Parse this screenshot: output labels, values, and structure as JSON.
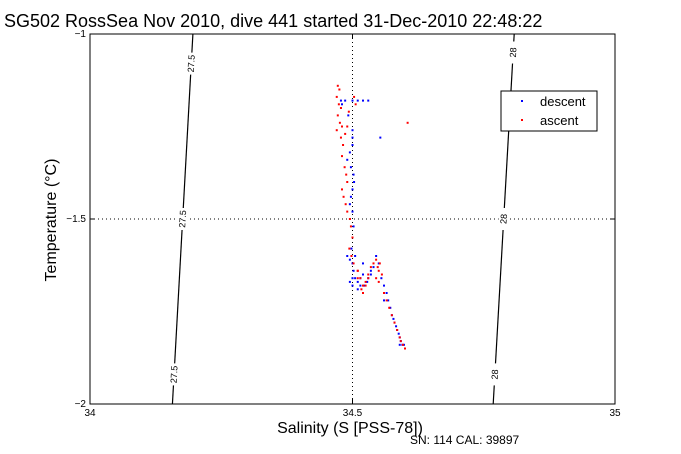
{
  "chart_data": {
    "type": "scatter",
    "title": "SG502 RossSea Nov 2010, dive 441 started 31-Dec-2010 22:48:22",
    "xlabel": "Salinity (S [PSS-78])",
    "ylabel": "Temperature (°C)",
    "xlim": [
      34,
      35
    ],
    "ylim": [
      -2,
      -1
    ],
    "xticks": [
      34,
      34.5,
      35
    ],
    "yticks": [
      -2,
      -1.5,
      -1
    ],
    "xtick_labels": [
      "34",
      "34.5",
      "35"
    ],
    "ytick_labels": [
      "−2",
      "−1.5",
      "−1"
    ],
    "grid": true,
    "legend_position": "top-right",
    "footer": "SN: 114  CAL: 39897",
    "isopycnals": [
      {
        "label": "27.5",
        "points": [
          [
            34.196,
            -1.0
          ],
          [
            34.157,
            -2.0
          ]
        ],
        "label_at": [
          -1.08,
          -1.5,
          -1.92
        ]
      },
      {
        "label": "28",
        "points": [
          [
            34.808,
            -1.0
          ],
          [
            34.768,
            -2.0
          ]
        ],
        "label_at": [
          -1.05,
          -1.5,
          -1.92
        ]
      }
    ],
    "series": [
      {
        "name": "descent",
        "color": "#0000ff",
        "x": [
          34.478,
          34.48,
          34.486,
          34.492,
          34.5,
          34.51,
          34.52,
          34.53,
          34.5,
          34.5,
          34.5,
          34.495,
          34.49,
          34.497,
          34.5,
          34.502,
          34.503,
          34.5,
          34.497,
          34.495,
          34.5,
          34.502,
          34.5,
          34.498,
          34.505,
          34.5,
          34.49,
          34.495,
          34.502,
          34.5,
          34.495,
          34.5,
          34.505,
          34.51,
          34.515,
          34.52,
          34.51,
          34.52,
          34.53,
          34.535,
          34.52,
          34.515,
          34.522,
          34.528,
          34.535,
          34.54,
          34.545,
          34.55,
          34.555,
          34.56,
          34.565,
          34.568,
          34.572,
          34.575,
          34.578,
          34.58,
          34.583,
          34.585,
          34.588,
          34.59,
          34.592,
          34.595,
          34.598,
          34.6,
          34.56,
          34.553,
          34.59
        ],
        "y": [
          -1.18,
          -1.19,
          -1.18,
          -1.22,
          -1.18,
          -1.18,
          -1.18,
          -1.18,
          -1.26,
          -1.28,
          -1.3,
          -1.32,
          -1.34,
          -1.36,
          -1.3,
          -1.38,
          -1.4,
          -1.42,
          -1.44,
          -1.46,
          -1.48,
          -1.52,
          -1.55,
          -1.58,
          -1.6,
          -1.62,
          -1.6,
          -1.61,
          -1.64,
          -1.66,
          -1.67,
          -1.68,
          -1.66,
          -1.67,
          -1.68,
          -1.65,
          -1.69,
          -1.7,
          -1.66,
          -1.64,
          -1.62,
          -1.66,
          -1.68,
          -1.67,
          -1.65,
          -1.63,
          -1.6,
          -1.62,
          -1.66,
          -1.68,
          -1.7,
          -1.72,
          -1.74,
          -1.76,
          -1.77,
          -1.78,
          -1.79,
          -1.8,
          -1.81,
          -1.82,
          -1.83,
          -1.84,
          -1.84,
          -1.85,
          -1.72,
          -1.28,
          -1.84
        ]
      },
      {
        "name": "ascent",
        "color": "#ff0000",
        "x": [
          34.472,
          34.475,
          34.47,
          34.474,
          34.478,
          34.472,
          34.476,
          34.48,
          34.47,
          34.478,
          34.482,
          34.486,
          34.49,
          34.493,
          34.48,
          34.485,
          34.488,
          34.49,
          34.48,
          34.483,
          34.487,
          34.49,
          34.495,
          34.497,
          34.5,
          34.494,
          34.498,
          34.502,
          34.51,
          34.515,
          34.52,
          34.525,
          34.53,
          34.535,
          34.54,
          34.545,
          34.548,
          34.55,
          34.552,
          34.556,
          34.55,
          34.545,
          34.56,
          34.565,
          34.57,
          34.575,
          34.58,
          34.585,
          34.59,
          34.592,
          34.596,
          34.6,
          34.605,
          34.51,
          34.517,
          34.52,
          34.525,
          34.53,
          34.503,
          34.506,
          34.51
        ],
        "y": [
          -1.14,
          -1.15,
          -1.17,
          -1.19,
          -1.2,
          -1.22,
          -1.24,
          -1.25,
          -1.26,
          -1.28,
          -1.3,
          -1.27,
          -1.25,
          -1.21,
          -1.33,
          -1.36,
          -1.38,
          -1.4,
          -1.42,
          -1.44,
          -1.46,
          -1.48,
          -1.5,
          -1.52,
          -1.55,
          -1.58,
          -1.6,
          -1.62,
          -1.64,
          -1.66,
          -1.68,
          -1.67,
          -1.65,
          -1.63,
          -1.62,
          -1.61,
          -1.63,
          -1.64,
          -1.62,
          -1.65,
          -1.67,
          -1.66,
          -1.7,
          -1.72,
          -1.74,
          -1.76,
          -1.78,
          -1.8,
          -1.82,
          -1.83,
          -1.84,
          -1.85,
          -1.24,
          -1.66,
          -1.69,
          -1.7,
          -1.68,
          -1.66,
          -1.17,
          -1.19,
          -1.64
        ]
      }
    ]
  }
}
